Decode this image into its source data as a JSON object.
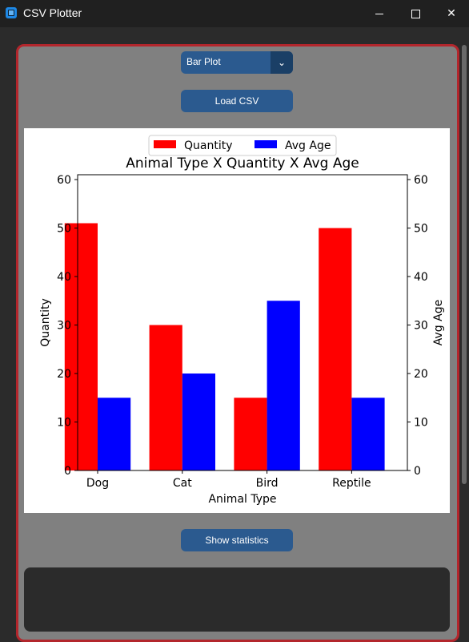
{
  "window": {
    "title": "CSV Plotter",
    "minimize_icon": "minimize-icon",
    "maximize_icon": "maximize-icon",
    "close_glyph": "✕"
  },
  "controls": {
    "plot_type": "Bar Plot",
    "dropdown_arrow": "⌄",
    "load_label": "Load CSV",
    "stats_label": "Show statistics"
  },
  "colors": {
    "frame_border": "#b3262c",
    "button": "#2b5a8f",
    "quantity": "#ff0000",
    "avg_age": "#0000ff"
  },
  "chart_data": {
    "type": "bar",
    "title": "Animal Type X Quantity X Avg Age",
    "xlabel": "Animal Type",
    "ylabel": "Quantity",
    "y2label": "Avg Age",
    "categories": [
      "Dog",
      "Cat",
      "Bird",
      "Reptile"
    ],
    "series": [
      {
        "name": "Quantity",
        "color": "#ff0000",
        "values": [
          51,
          30,
          15,
          50
        ],
        "axis": "left"
      },
      {
        "name": "Avg Age",
        "color": "#0000ff",
        "values": [
          15,
          20,
          35,
          15
        ],
        "axis": "right"
      }
    ],
    "ylim": [
      0,
      61
    ],
    "y2lim": [
      0,
      61
    ],
    "yticks": [
      0,
      10,
      20,
      30,
      40,
      50,
      60
    ],
    "legend": "top-center",
    "grid": false
  }
}
